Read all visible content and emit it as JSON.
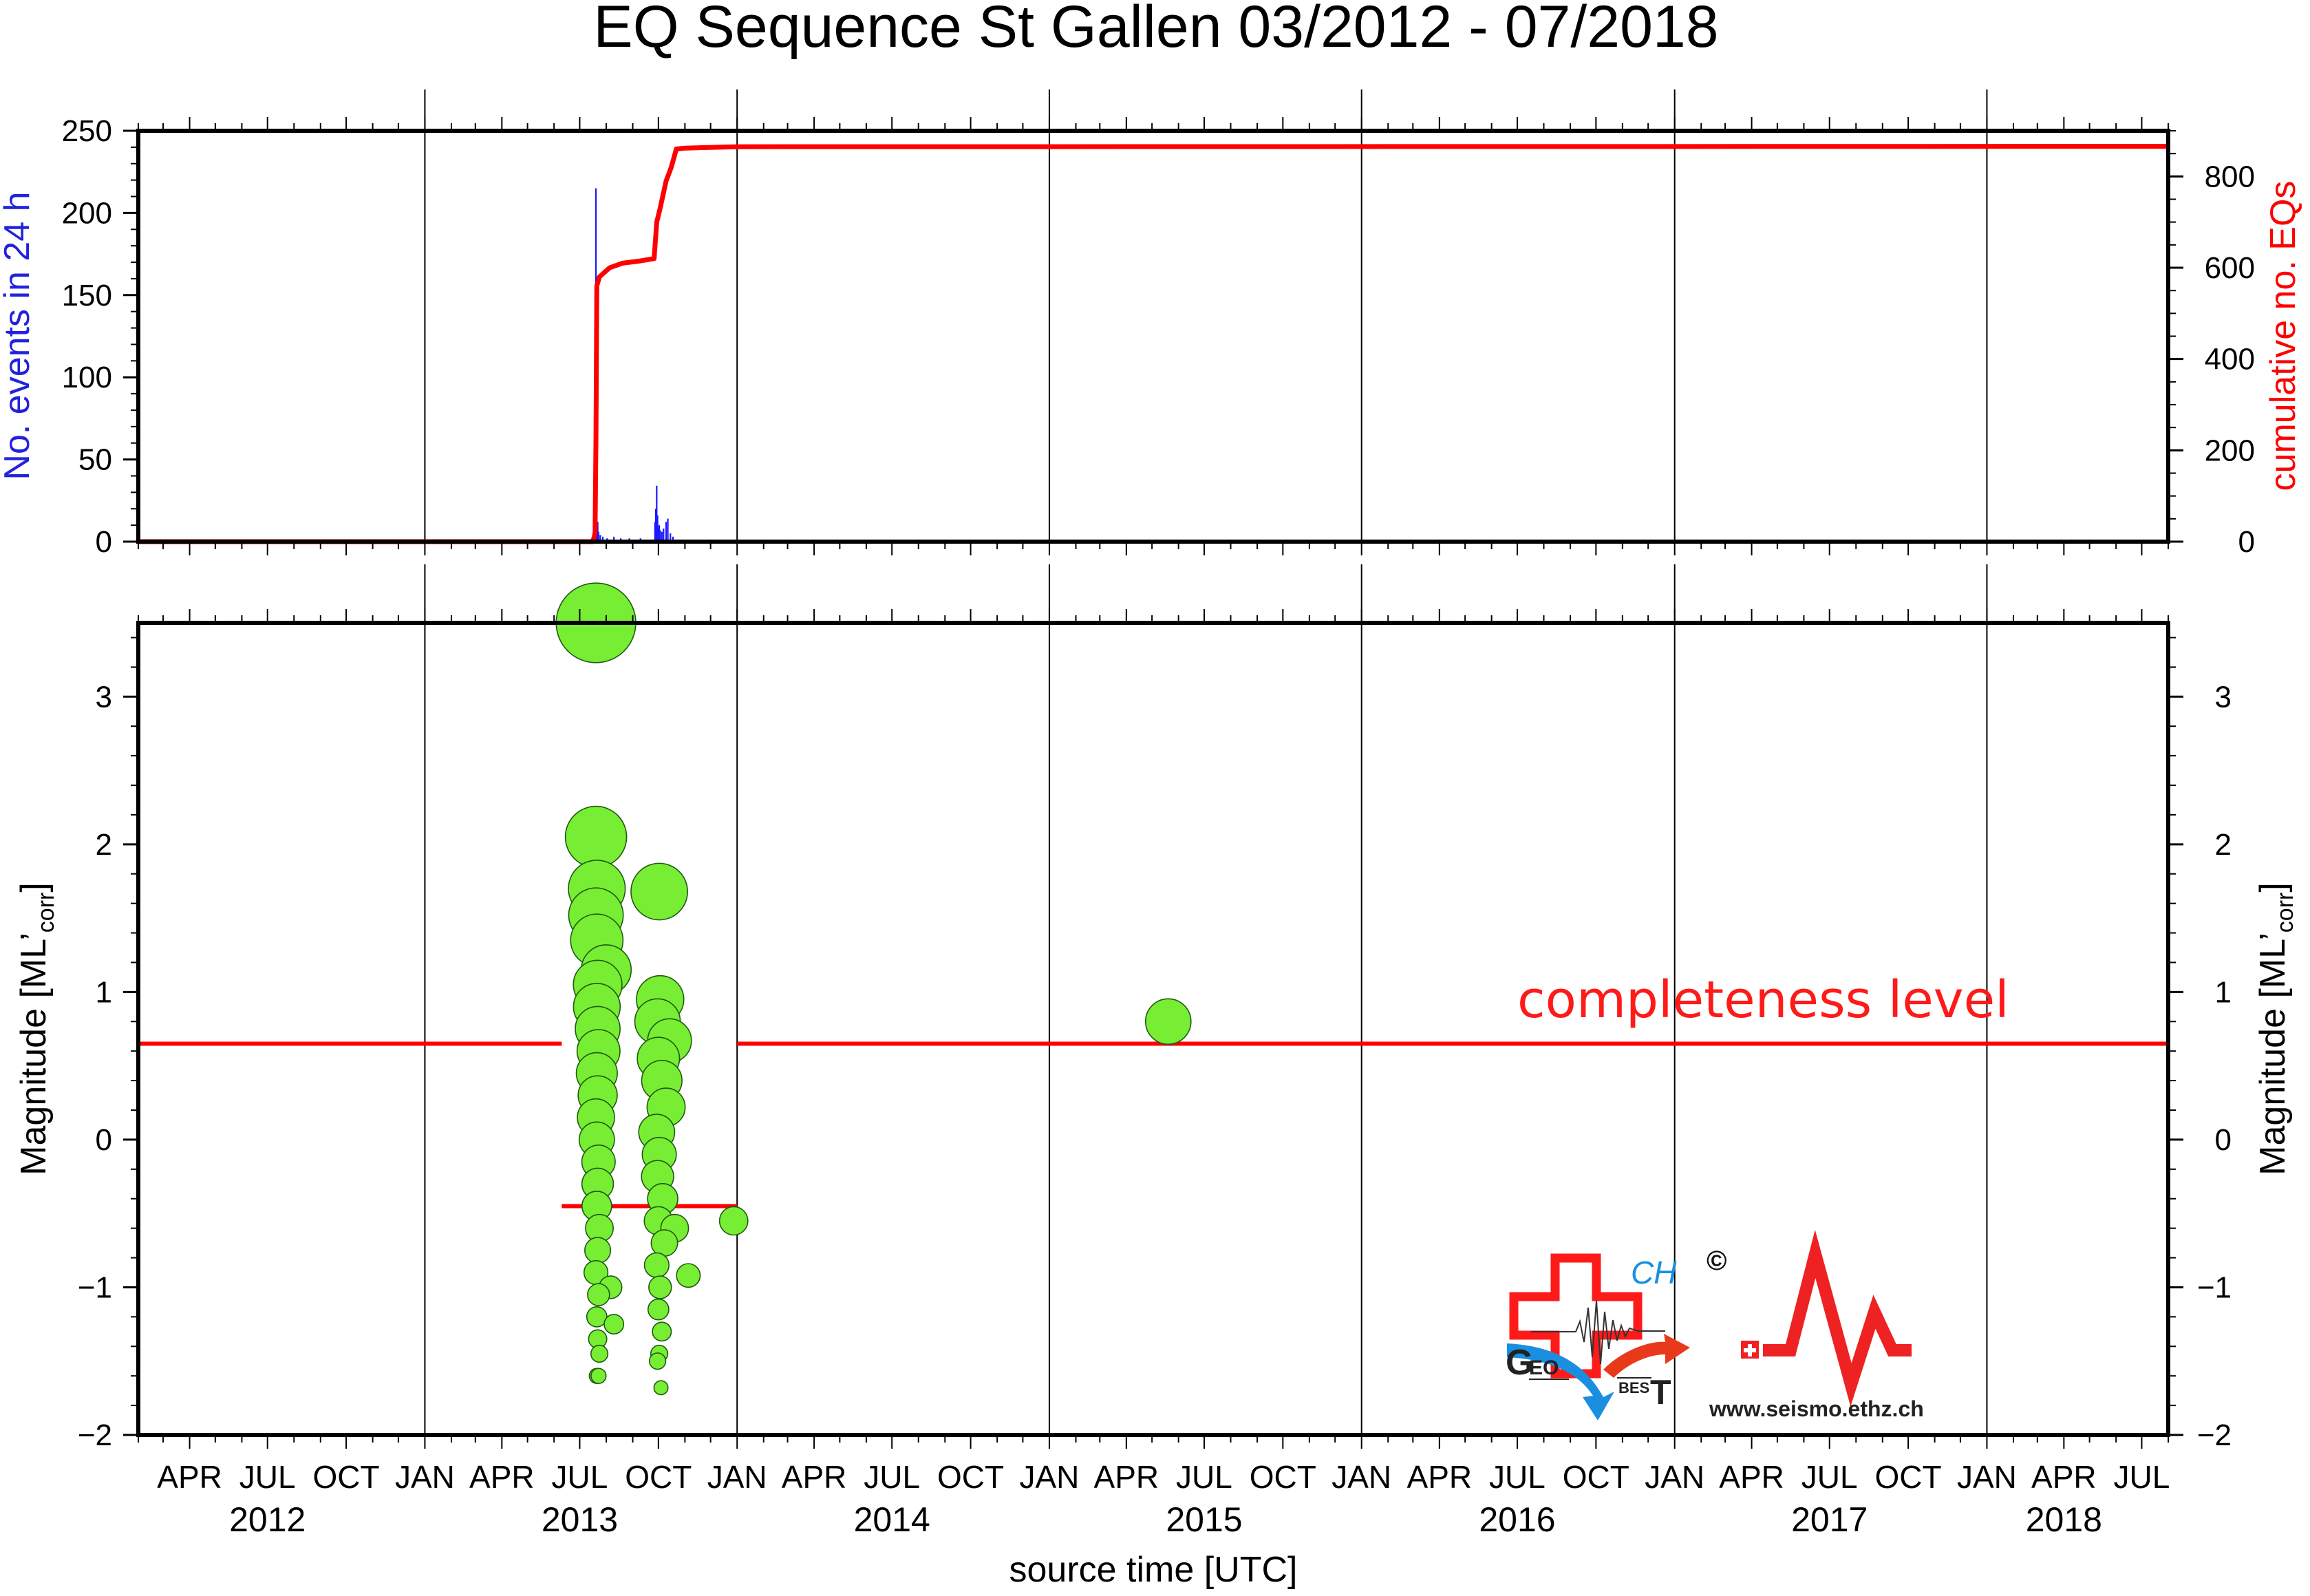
{
  "chart_data": {
    "title": "EQ Sequence St Gallen 03/2012 - 07/2018",
    "xlabel": "source time [UTC]",
    "x_range": [
      "2012-02-01",
      "2018-08-01"
    ],
    "x_month_ticks": [
      {
        "date": "2012-04-01",
        "label": "APR"
      },
      {
        "date": "2012-07-01",
        "label": "JUL"
      },
      {
        "date": "2012-10-01",
        "label": "OCT"
      },
      {
        "date": "2013-01-01",
        "label": "JAN"
      },
      {
        "date": "2013-04-01",
        "label": "APR"
      },
      {
        "date": "2013-07-01",
        "label": "JUL"
      },
      {
        "date": "2013-10-01",
        "label": "OCT"
      },
      {
        "date": "2014-01-01",
        "label": "JAN"
      },
      {
        "date": "2014-04-01",
        "label": "APR"
      },
      {
        "date": "2014-07-01",
        "label": "JUL"
      },
      {
        "date": "2014-10-01",
        "label": "OCT"
      },
      {
        "date": "2015-01-01",
        "label": "JAN"
      },
      {
        "date": "2015-04-01",
        "label": "APR"
      },
      {
        "date": "2015-07-01",
        "label": "JUL"
      },
      {
        "date": "2015-10-01",
        "label": "OCT"
      },
      {
        "date": "2016-01-01",
        "label": "JAN"
      },
      {
        "date": "2016-04-01",
        "label": "APR"
      },
      {
        "date": "2016-07-01",
        "label": "JUL"
      },
      {
        "date": "2016-10-01",
        "label": "OCT"
      },
      {
        "date": "2017-01-01",
        "label": "JAN"
      },
      {
        "date": "2017-04-01",
        "label": "APR"
      },
      {
        "date": "2017-07-01",
        "label": "JUL"
      },
      {
        "date": "2017-10-01",
        "label": "OCT"
      },
      {
        "date": "2018-01-01",
        "label": "JAN"
      },
      {
        "date": "2018-04-01",
        "label": "APR"
      },
      {
        "date": "2018-07-01",
        "label": "JUL"
      }
    ],
    "x_year_labels": [
      {
        "date": "2012-07-01",
        "label": "2012"
      },
      {
        "date": "2013-07-01",
        "label": "2013"
      },
      {
        "date": "2014-07-01",
        "label": "2014"
      },
      {
        "date": "2015-07-01",
        "label": "2015"
      },
      {
        "date": "2016-07-01",
        "label": "2016"
      },
      {
        "date": "2017-07-01",
        "label": "2017"
      },
      {
        "date": "2018-04-01",
        "label": "2018"
      }
    ],
    "year_boundaries": [
      "2013-01-01",
      "2014-01-01",
      "2015-01-01",
      "2016-01-01",
      "2017-01-01",
      "2018-01-01"
    ],
    "top_panel": {
      "type": "bar+line",
      "ylabel_left": "No. events in 24 h",
      "ylabel_right": "cumulative no. EQs",
      "ylim_left": [
        0,
        250
      ],
      "yticks_left": [
        0,
        50,
        100,
        150,
        200,
        250
      ],
      "ylim_right": [
        0,
        900
      ],
      "yticks_right": [
        0,
        200,
        400,
        600,
        800
      ],
      "daily_counts": [
        {
          "date": "2013-07-18",
          "count": 5
        },
        {
          "date": "2013-07-19",
          "count": 10
        },
        {
          "date": "2013-07-20",
          "count": 215
        },
        {
          "date": "2013-07-21",
          "count": 37
        },
        {
          "date": "2013-07-22",
          "count": 12
        },
        {
          "date": "2013-07-23",
          "count": 6
        },
        {
          "date": "2013-07-25",
          "count": 4
        },
        {
          "date": "2013-07-28",
          "count": 3
        },
        {
          "date": "2013-08-02",
          "count": 2
        },
        {
          "date": "2013-08-10",
          "count": 3
        },
        {
          "date": "2013-08-18",
          "count": 2
        },
        {
          "date": "2013-08-28",
          "count": 2
        },
        {
          "date": "2013-09-10",
          "count": 2
        },
        {
          "date": "2013-09-27",
          "count": 12
        },
        {
          "date": "2013-09-28",
          "count": 20
        },
        {
          "date": "2013-09-29",
          "count": 34
        },
        {
          "date": "2013-09-30",
          "count": 16
        },
        {
          "date": "2013-10-01",
          "count": 9
        },
        {
          "date": "2013-10-02",
          "count": 10
        },
        {
          "date": "2013-10-03",
          "count": 7
        },
        {
          "date": "2013-10-05",
          "count": 6
        },
        {
          "date": "2013-10-07",
          "count": 8
        },
        {
          "date": "2013-10-10",
          "count": 12
        },
        {
          "date": "2013-10-12",
          "count": 14
        },
        {
          "date": "2013-10-15",
          "count": 5
        },
        {
          "date": "2013-10-18",
          "count": 3
        }
      ],
      "cumulative": [
        {
          "date": "2012-02-01",
          "value": 0
        },
        {
          "date": "2013-07-16",
          "value": 0
        },
        {
          "date": "2013-07-18",
          "value": 10
        },
        {
          "date": "2013-07-19",
          "value": 20
        },
        {
          "date": "2013-07-20",
          "value": 230
        },
        {
          "date": "2013-07-21",
          "value": 560
        },
        {
          "date": "2013-07-24",
          "value": 580
        },
        {
          "date": "2013-08-05",
          "value": 600
        },
        {
          "date": "2013-08-20",
          "value": 610
        },
        {
          "date": "2013-09-10",
          "value": 615
        },
        {
          "date": "2013-09-26",
          "value": 620
        },
        {
          "date": "2013-09-29",
          "value": 700
        },
        {
          "date": "2013-10-03",
          "value": 730
        },
        {
          "date": "2013-10-10",
          "value": 790
        },
        {
          "date": "2013-10-16",
          "value": 820
        },
        {
          "date": "2013-10-22",
          "value": 860
        },
        {
          "date": "2013-11-01",
          "value": 862
        },
        {
          "date": "2014-01-01",
          "value": 865
        },
        {
          "date": "2018-08-01",
          "value": 866
        }
      ]
    },
    "bottom_panel": {
      "type": "scatter",
      "ylabel": "Magnitude [ML’corr]",
      "ylabel_main": "Magnitude [ML’",
      "ylabel_sub": "corr",
      "ylabel_close": "]",
      "ylim": [
        -2,
        3.5
      ],
      "yticks": [
        -2,
        -1,
        0,
        1,
        2,
        3
      ],
      "ytick_labels": [
        "−2",
        "−1",
        "0",
        "1",
        "2",
        "3"
      ],
      "completeness": [
        {
          "start": "2012-02-01",
          "end": "2013-06-10",
          "mag": 0.65
        },
        {
          "start": "2013-06-10",
          "end": "2014-01-01",
          "mag": -0.45
        },
        {
          "start": "2014-01-01",
          "end": "2018-08-01",
          "mag": 0.65
        }
      ],
      "events": [
        {
          "date": "2013-07-20",
          "mag": 3.5
        },
        {
          "date": "2013-07-20",
          "mag": 2.05
        },
        {
          "date": "2013-07-21",
          "mag": 1.7
        },
        {
          "date": "2013-07-20",
          "mag": 1.52
        },
        {
          "date": "2013-07-21",
          "mag": 1.35
        },
        {
          "date": "2013-08-01",
          "mag": 1.15
        },
        {
          "date": "2013-07-22",
          "mag": 1.05
        },
        {
          "date": "2013-07-21",
          "mag": 0.9
        },
        {
          "date": "2013-07-22",
          "mag": 0.75
        },
        {
          "date": "2013-07-23",
          "mag": 0.6
        },
        {
          "date": "2013-07-21",
          "mag": 0.45
        },
        {
          "date": "2013-07-22",
          "mag": 0.3
        },
        {
          "date": "2013-07-20",
          "mag": 0.15
        },
        {
          "date": "2013-07-21",
          "mag": 0.0
        },
        {
          "date": "2013-07-23",
          "mag": -0.15
        },
        {
          "date": "2013-07-22",
          "mag": -0.3
        },
        {
          "date": "2013-07-21",
          "mag": -0.45
        },
        {
          "date": "2013-07-24",
          "mag": -0.6
        },
        {
          "date": "2013-07-22",
          "mag": -0.75
        },
        {
          "date": "2013-07-20",
          "mag": -0.9
        },
        {
          "date": "2013-07-23",
          "mag": -1.05
        },
        {
          "date": "2013-07-21",
          "mag": -1.2
        },
        {
          "date": "2013-07-22",
          "mag": -1.35
        },
        {
          "date": "2013-07-24",
          "mag": -1.45
        },
        {
          "date": "2013-07-21",
          "mag": -1.6
        },
        {
          "date": "2013-07-23",
          "mag": -1.6
        },
        {
          "date": "2013-08-06",
          "mag": -1.0
        },
        {
          "date": "2013-08-10",
          "mag": -1.25
        },
        {
          "date": "2013-10-02",
          "mag": 1.68
        },
        {
          "date": "2013-10-03",
          "mag": 0.95
        },
        {
          "date": "2013-09-30",
          "mag": 0.8
        },
        {
          "date": "2013-10-14",
          "mag": 0.67
        },
        {
          "date": "2013-10-01",
          "mag": 0.55
        },
        {
          "date": "2013-10-05",
          "mag": 0.4
        },
        {
          "date": "2013-10-10",
          "mag": 0.22
        },
        {
          "date": "2013-09-29",
          "mag": 0.05
        },
        {
          "date": "2013-10-02",
          "mag": -0.1
        },
        {
          "date": "2013-09-30",
          "mag": -0.25
        },
        {
          "date": "2013-10-06",
          "mag": -0.4
        },
        {
          "date": "2013-10-01",
          "mag": -0.55
        },
        {
          "date": "2013-10-08",
          "mag": -0.7
        },
        {
          "date": "2013-09-29",
          "mag": -0.85
        },
        {
          "date": "2013-10-03",
          "mag": -1.0
        },
        {
          "date": "2013-10-01",
          "mag": -1.15
        },
        {
          "date": "2013-10-05",
          "mag": -1.3
        },
        {
          "date": "2013-10-02",
          "mag": -1.45
        },
        {
          "date": "2013-09-30",
          "mag": -1.5
        },
        {
          "date": "2013-10-04",
          "mag": -1.68
        },
        {
          "date": "2013-10-20",
          "mag": -0.6
        },
        {
          "date": "2013-11-05",
          "mag": -0.92
        },
        {
          "date": "2013-12-28",
          "mag": -0.55
        },
        {
          "date": "2015-05-20",
          "mag": 0.8
        }
      ]
    },
    "annotations": [
      "completeness level"
    ]
  },
  "logos": {
    "geobest": {
      "ch": "CH",
      "geo_g": "G",
      "geo_rest": "EO",
      "best_rest": "BES",
      "best_t": "T"
    },
    "copyright": "©",
    "sed_url": "www.seismo.ethz.ch"
  },
  "colors": {
    "daily_bars": "#1a1aff",
    "cumulative": "#ff0000",
    "events_fill": "#77ee33",
    "completeness": "#ff0000",
    "left_axis_title": "#2222dd",
    "right_axis_title": "#ff0000"
  }
}
